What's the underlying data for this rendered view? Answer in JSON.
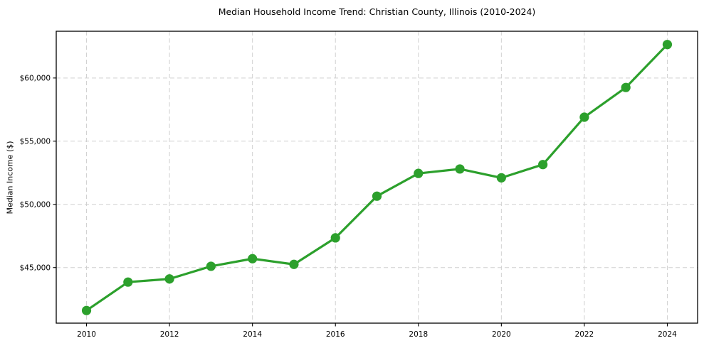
{
  "figure": {
    "background": "#ffffff"
  },
  "chart_data": {
    "type": "line",
    "title": "Median Household Income Trend: Christian County, Illinois (2010-2024)",
    "xlabel": "",
    "ylabel": "Median Income ($)",
    "series": [
      {
        "name": "Median Household Income",
        "x": [
          2010,
          2011,
          2012,
          2013,
          2014,
          2015,
          2016,
          2017,
          2018,
          2019,
          2020,
          2021,
          2022,
          2023,
          2024
        ],
        "y": [
          41600,
          43850,
          44100,
          45100,
          45700,
          45250,
          47350,
          50650,
          52450,
          52800,
          52100,
          53150,
          56900,
          59250,
          62650
        ]
      }
    ],
    "xticks": {
      "values": [
        2010,
        2012,
        2014,
        2016,
        2018,
        2020,
        2022,
        2024
      ],
      "labels": [
        "2010",
        "2012",
        "2014",
        "2016",
        "2018",
        "2020",
        "2022",
        "2024"
      ]
    },
    "yticks": {
      "values": [
        45000,
        50000,
        55000,
        60000
      ],
      "labels": [
        "$45,000",
        "$50,000",
        "$55,000",
        "$60,000"
      ]
    },
    "xlim": [
      2009.27,
      2024.73
    ],
    "ylim": [
      40600,
      63700
    ],
    "grid": {
      "on": true,
      "linestyle": "dashed",
      "color": "#d0d0d0"
    },
    "line_color": "#2ca02c",
    "marker_color": "#2ca02c",
    "marker": "circle",
    "axis_color": "#000000",
    "text_color": "#000000",
    "legend": "none"
  }
}
